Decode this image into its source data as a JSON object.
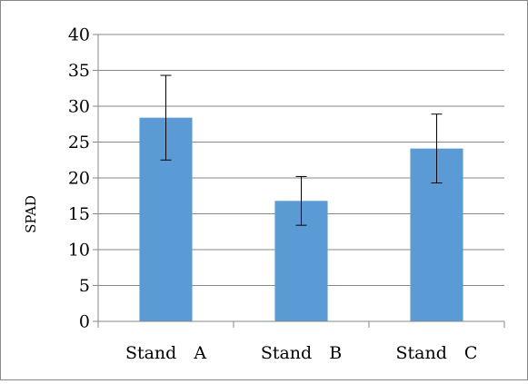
{
  "chart_data": {
    "type": "bar",
    "title": "",
    "xlabel": "",
    "ylabel": "SPAD",
    "ylim": [
      0,
      40
    ],
    "yticks": [
      0,
      5,
      10,
      15,
      20,
      25,
      30,
      35,
      40
    ],
    "categories": [
      "Stand　A",
      "Stand　B",
      "Stand　C"
    ],
    "values": [
      28.4,
      16.8,
      24.1
    ],
    "error_low": [
      22.5,
      13.4,
      19.3
    ],
    "error_high": [
      34.3,
      20.2,
      28.9
    ],
    "grid": true,
    "legend": "none",
    "bar_color": "#5b9bd5",
    "grid_color": "#878787",
    "axis_color": "#878787"
  }
}
